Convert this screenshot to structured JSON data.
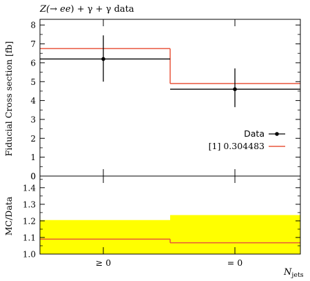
{
  "chart_data": [
    {
      "type": "line",
      "panel": "main",
      "title": "Z(→ ee) + γ + γ data",
      "ylabel": "Fiducial Cross section [fb]",
      "xlabel": "",
      "categories": [
        "≥ 0",
        "= 0"
      ],
      "ylim": [
        0,
        8.3
      ],
      "yticks": [
        0,
        1,
        2,
        3,
        4,
        5,
        6,
        7,
        8
      ],
      "legend_position": "middle-right",
      "series": [
        {
          "name": "Data",
          "style": "points-with-errorbars",
          "color": "#000000",
          "values": [
            6.2,
            4.6
          ],
          "err_low": [
            1.2,
            0.95
          ],
          "err_high": [
            1.25,
            1.1
          ]
        },
        {
          "name": "[1] 0.304483",
          "style": "histogram-step",
          "color": "#e8553c",
          "values": [
            6.75,
            4.9
          ]
        }
      ]
    },
    {
      "type": "line",
      "panel": "ratio",
      "ylabel": "MC/Data",
      "xlabel": "N_jets",
      "categories": [
        "≥ 0",
        "= 0"
      ],
      "ylim": [
        1.0,
        1.47
      ],
      "yticks": [
        1.0,
        1.1,
        1.2,
        1.3,
        1.4
      ],
      "band": {
        "color": "#ffff00",
        "low": [
          1.0,
          1.0
        ],
        "high": [
          1.205,
          1.235
        ]
      },
      "series": [
        {
          "name": "[1] 0.304483",
          "style": "histogram-step",
          "color": "#e8553c",
          "values": [
            1.09,
            1.068
          ]
        }
      ]
    }
  ],
  "text": {
    "title_prefix": "Z(→ ",
    "title_ee": "ee",
    "title_suffix": ") + γ + γ data",
    "ylabel_main": "Fiducial Cross section [fb]",
    "ylabel_ratio": "MC/Data",
    "xlabel_main": "N",
    "xlabel_sub": "jets",
    "legend_data": "Data",
    "legend_mc": "[1] 0.304483"
  }
}
